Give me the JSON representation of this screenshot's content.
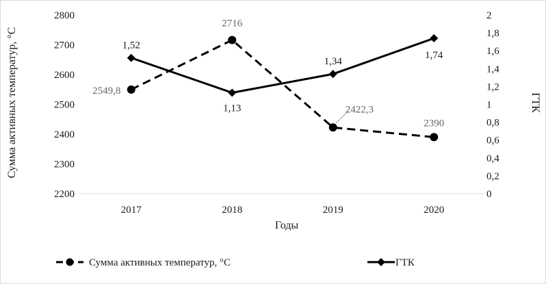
{
  "chart_data": {
    "type": "line",
    "categories": [
      "2017",
      "2018",
      "2019",
      "2020"
    ],
    "xlabel": "Годы",
    "ylabel_left": "Сумма активных температур, °С",
    "ylabel_right": "ГТК",
    "y_left": {
      "lim": [
        2200,
        2800
      ],
      "ticks": [
        "2200",
        "2300",
        "2400",
        "2500",
        "2600",
        "2700",
        "2800"
      ]
    },
    "y_right": {
      "lim": [
        0,
        2
      ],
      "ticks": [
        "0",
        "0,2",
        "0,4",
        "0,6",
        "0,8",
        "1",
        "1,2",
        "1,4",
        "1,6",
        "1,8",
        "2"
      ]
    },
    "grid": false,
    "legend_position": "bottom",
    "series": [
      {
        "name": "Сумма активных температур, °С",
        "axis": "left",
        "style": "dashed",
        "marker": "circle",
        "color": "#000000",
        "values": [
          2549.8,
          2716,
          2422.3,
          2390
        ],
        "labels": [
          "2549,8",
          "2716",
          "2422,3",
          "2390"
        ]
      },
      {
        "name": "ГТК",
        "axis": "right",
        "style": "solid",
        "marker": "diamond",
        "color": "#000000",
        "values": [
          1.52,
          1.13,
          1.34,
          1.74
        ],
        "labels": [
          "1,52",
          "1,13",
          "1,34",
          "1,74"
        ]
      }
    ]
  }
}
